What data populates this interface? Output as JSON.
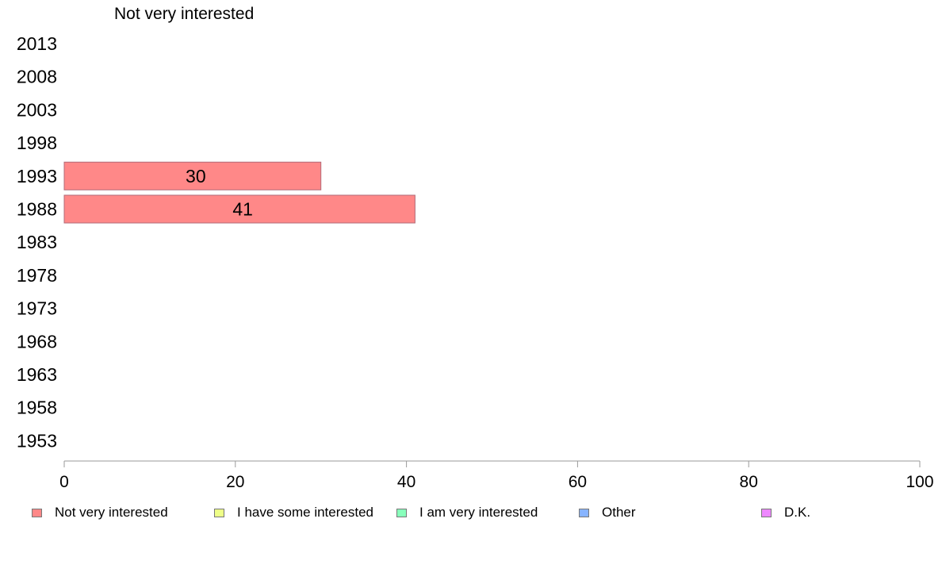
{
  "chart_data": {
    "type": "bar",
    "orientation": "horizontal",
    "title": "Not very interested",
    "categories": [
      "2013",
      "2008",
      "2003",
      "1998",
      "1993",
      "1988",
      "1983",
      "1978",
      "1973",
      "1968",
      "1963",
      "1958",
      "1953"
    ],
    "series": [
      {
        "name": "Not very interested",
        "color": "#ff8888",
        "values": [
          null,
          null,
          null,
          null,
          30,
          41,
          null,
          null,
          null,
          null,
          null,
          null,
          null
        ]
      }
    ],
    "xlim": [
      0,
      100
    ],
    "xticks": [
      "0",
      "20",
      "40",
      "60",
      "80",
      "100"
    ],
    "xlabel": "",
    "ylabel": "",
    "grid": false,
    "legend_placement": "bottom",
    "legend": [
      {
        "label": "Not very interested",
        "color": "#ff8888"
      },
      {
        "label": "I have some interested",
        "color": "#eeff88"
      },
      {
        "label": "I am very interested",
        "color": "#88ffbb"
      },
      {
        "label": "Other",
        "color": "#88b4ff"
      },
      {
        "label": "D.K.",
        "color": "#ee88ff"
      }
    ]
  }
}
